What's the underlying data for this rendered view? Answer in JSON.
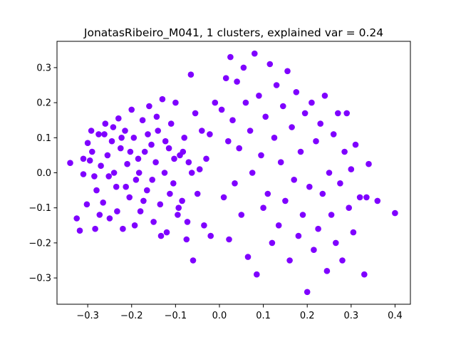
{
  "chart_data": {
    "type": "scatter",
    "title": "JonatasRibeiro_M041, 1 clusters, explained var = 0.24",
    "xlabel": "",
    "ylabel": "",
    "xlim": [
      -0.37,
      0.435
    ],
    "ylim": [
      -0.375,
      0.375
    ],
    "x_ticks": [
      -0.3,
      -0.2,
      -0.1,
      0.0,
      0.1,
      0.2,
      0.3,
      0.4
    ],
    "x_tick_labels": [
      "−0.3",
      "−0.2",
      "−0.1",
      "0.0",
      "0.1",
      "0.2",
      "0.3",
      "0.4"
    ],
    "y_ticks": [
      -0.3,
      -0.2,
      -0.1,
      0.0,
      0.1,
      0.2,
      0.3
    ],
    "y_tick_labels": [
      "−0.3",
      "−0.2",
      "−0.1",
      "0.0",
      "0.1",
      "0.2",
      "0.3"
    ],
    "grid": false,
    "legend": "none",
    "marker_color": "#7f00ff",
    "series": [
      {
        "points": [
          [
            -0.34,
            0.028
          ],
          [
            -0.31,
            -0.004
          ],
          [
            -0.3,
            0.085
          ],
          [
            -0.295,
            0.035
          ],
          [
            -0.29,
            0.06
          ],
          [
            -0.285,
            -0.01
          ],
          [
            -0.28,
            -0.05
          ],
          [
            -0.275,
            0.11
          ],
          [
            -0.27,
            0.02
          ],
          [
            -0.265,
            -0.085
          ],
          [
            -0.26,
            0.14
          ],
          [
            -0.255,
            0.05
          ],
          [
            -0.25,
            -0.13
          ],
          [
            -0.245,
            0.09
          ],
          [
            -0.24,
            0.0
          ],
          [
            -0.235,
            -0.04
          ],
          [
            -0.23,
            0.155
          ],
          [
            -0.225,
            0.07
          ],
          [
            -0.22,
            -0.16
          ],
          [
            -0.215,
            0.12
          ],
          [
            -0.21,
            0.025
          ],
          [
            -0.205,
            -0.07
          ],
          [
            -0.2,
            0.18
          ],
          [
            -0.195,
            0.1
          ],
          [
            -0.19,
            -0.02
          ],
          [
            -0.185,
            0.04
          ],
          [
            -0.18,
            -0.11
          ],
          [
            -0.175,
            0.15
          ],
          [
            -0.17,
            0.06
          ],
          [
            -0.165,
            -0.05
          ],
          [
            -0.16,
            0.19
          ],
          [
            -0.155,
            0.08
          ],
          [
            -0.15,
            -0.14
          ],
          [
            -0.145,
            0.03
          ],
          [
            -0.14,
            0.12
          ],
          [
            -0.135,
            -0.09
          ],
          [
            -0.13,
            0.21
          ],
          [
            -0.125,
            0.0
          ],
          [
            -0.12,
            -0.17
          ],
          [
            -0.115,
            0.07
          ],
          [
            -0.11,
            0.14
          ],
          [
            -0.105,
            -0.03
          ],
          [
            -0.1,
            0.2
          ],
          [
            -0.095,
            -0.12
          ],
          [
            -0.09,
            0.05
          ],
          [
            -0.085,
            -0.08
          ],
          [
            -0.08,
            0.1
          ],
          [
            -0.075,
            -0.19
          ],
          [
            -0.07,
            0.03
          ],
          [
            -0.065,
            0.28
          ],
          [
            -0.06,
            -0.25
          ],
          [
            -0.055,
            0.17
          ],
          [
            -0.05,
            -0.06
          ],
          [
            -0.045,
            0.01
          ],
          [
            -0.04,
            0.12
          ],
          [
            -0.035,
            -0.15
          ],
          [
            -0.03,
            0.04
          ],
          [
            -0.02,
            -0.18
          ],
          [
            -0.325,
            -0.13
          ],
          [
            -0.318,
            -0.165
          ],
          [
            -0.31,
            0.04
          ],
          [
            -0.302,
            -0.09
          ],
          [
            -0.292,
            0.12
          ],
          [
            -0.283,
            -0.16
          ],
          [
            -0.273,
            -0.12
          ],
          [
            -0.262,
            0.11
          ],
          [
            -0.252,
            -0.01
          ],
          [
            -0.242,
            0.13
          ],
          [
            -0.233,
            -0.11
          ],
          [
            -0.223,
            0.1
          ],
          [
            -0.213,
            -0.04
          ],
          [
            -0.203,
            0.06
          ],
          [
            -0.193,
            -0.15
          ],
          [
            -0.183,
            0.0
          ],
          [
            -0.173,
            -0.08
          ],
          [
            -0.163,
            0.11
          ],
          [
            -0.153,
            -0.02
          ],
          [
            -0.143,
            0.16
          ],
          [
            -0.133,
            -0.18
          ],
          [
            -0.123,
            0.09
          ],
          [
            -0.113,
            -0.06
          ],
          [
            -0.103,
            0.04
          ],
          [
            -0.093,
            -0.1
          ],
          [
            -0.083,
            0.06
          ],
          [
            -0.073,
            -0.14
          ],
          [
            -0.063,
            0.0
          ],
          [
            -0.022,
            0.11
          ],
          [
            -0.01,
            0.2
          ],
          [
            0.005,
            0.18
          ],
          [
            0.01,
            -0.07
          ],
          [
            0.015,
            0.27
          ],
          [
            0.02,
            0.09
          ],
          [
            0.022,
            -0.19
          ],
          [
            0.025,
            0.33
          ],
          [
            0.03,
            0.15
          ],
          [
            0.035,
            -0.03
          ],
          [
            0.04,
            0.26
          ],
          [
            0.045,
            0.07
          ],
          [
            0.05,
            -0.12
          ],
          [
            0.055,
            0.3
          ],
          [
            0.06,
            0.2
          ],
          [
            0.065,
            -0.24
          ],
          [
            0.07,
            0.12
          ],
          [
            0.075,
            0.0
          ],
          [
            0.08,
            0.34
          ],
          [
            0.085,
            -0.29
          ],
          [
            0.09,
            0.22
          ],
          [
            0.095,
            0.05
          ],
          [
            0.1,
            -0.1
          ],
          [
            0.105,
            0.16
          ],
          [
            0.11,
            -0.06
          ],
          [
            0.115,
            0.31
          ],
          [
            0.12,
            -0.2
          ],
          [
            0.125,
            0.1
          ],
          [
            0.13,
            0.25
          ],
          [
            0.135,
            -0.15
          ],
          [
            0.14,
            0.03
          ],
          [
            0.145,
            0.19
          ],
          [
            0.15,
            -0.08
          ],
          [
            0.155,
            0.29
          ],
          [
            0.16,
            -0.25
          ],
          [
            0.165,
            0.13
          ],
          [
            0.17,
            -0.02
          ],
          [
            0.175,
            0.23
          ],
          [
            0.18,
            -0.18
          ],
          [
            0.185,
            0.06
          ],
          [
            0.19,
            -0.12
          ],
          [
            0.195,
            0.17
          ],
          [
            0.2,
            -0.34
          ],
          [
            0.205,
            -0.04
          ],
          [
            0.21,
            0.2
          ],
          [
            0.215,
            -0.22
          ],
          [
            0.22,
            0.09
          ],
          [
            0.225,
            -0.16
          ],
          [
            0.23,
            0.14
          ],
          [
            0.235,
            -0.06
          ],
          [
            0.24,
            0.22
          ],
          [
            0.245,
            -0.28
          ],
          [
            0.25,
            0.0
          ],
          [
            0.255,
            -0.12
          ],
          [
            0.26,
            0.11
          ],
          [
            0.265,
            -0.2
          ],
          [
            0.27,
            0.17
          ],
          [
            0.275,
            -0.03
          ],
          [
            0.28,
            -0.25
          ],
          [
            0.285,
            0.06
          ],
          [
            0.29,
            0.17
          ],
          [
            0.295,
            -0.1
          ],
          [
            0.3,
            0.01
          ],
          [
            0.305,
            -0.17
          ],
          [
            0.31,
            0.08
          ],
          [
            0.32,
            -0.07
          ],
          [
            0.33,
            -0.29
          ],
          [
            0.335,
            -0.07
          ],
          [
            0.34,
            0.025
          ],
          [
            0.36,
            -0.08
          ],
          [
            0.4,
            -0.115
          ]
        ]
      }
    ]
  }
}
